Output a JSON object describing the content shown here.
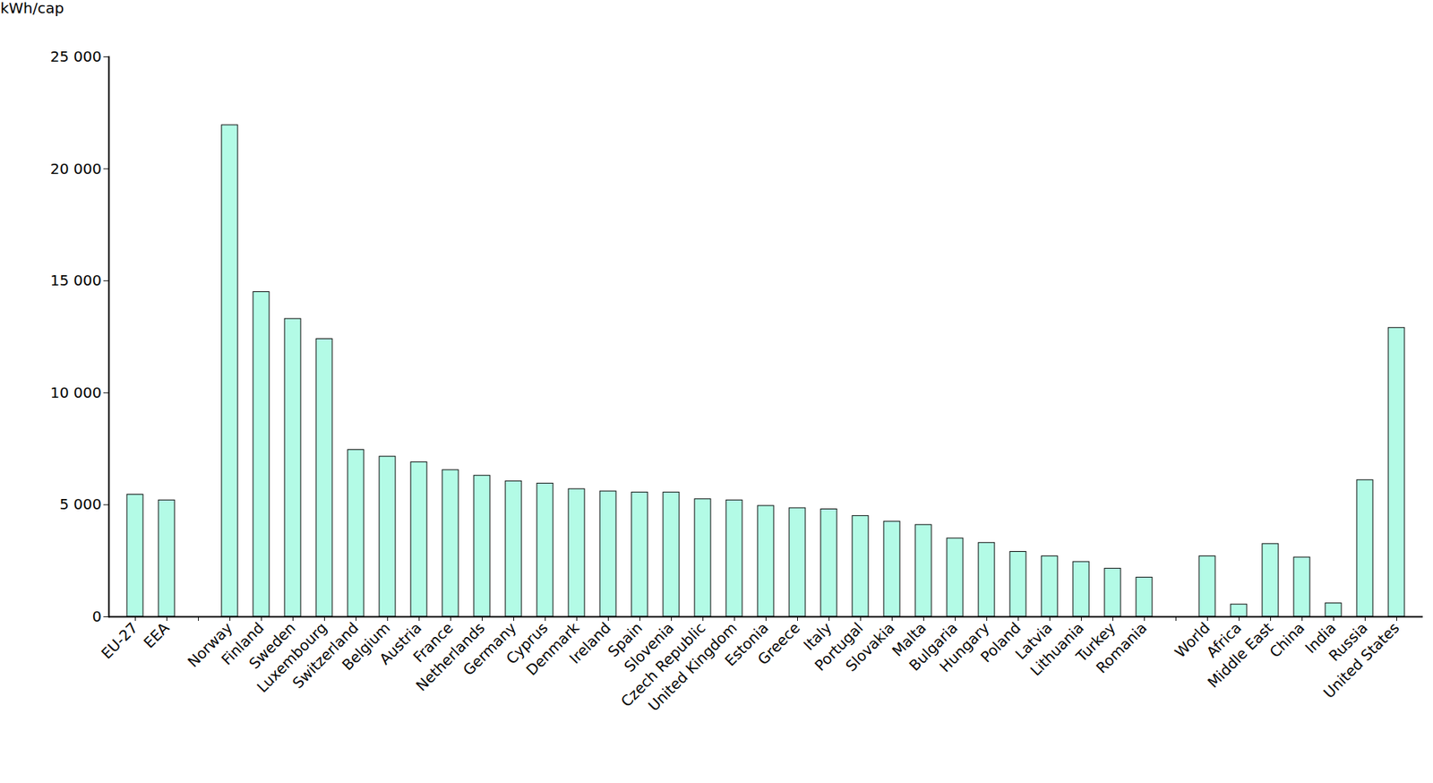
{
  "chart_data": {
    "type": "bar",
    "y_label": "kWh/cap",
    "categories": [
      "EU-27",
      "EEA",
      null,
      "Norway",
      "Finland",
      "Sweden",
      "Luxembourg",
      "Switzerland",
      "Belgium",
      "Austria",
      "France",
      "Netherlands",
      "Germany",
      "Cyprus",
      "Denmark",
      "Ireland",
      "Spain",
      "Slovenia",
      "Czech Republic",
      "United Kingdom",
      "Estonia",
      "Greece",
      "Italy",
      "Portugal",
      "Slovakia",
      "Malta",
      "Bulgaria",
      "Hungary",
      "Poland",
      "Latvia",
      "Lithuania",
      "Turkey",
      "Romania",
      null,
      "World",
      "Africa",
      "Middle East",
      "China",
      "India",
      "Russia",
      "United States"
    ],
    "values": [
      5450,
      5200,
      null,
      21950,
      14500,
      13300,
      12400,
      7450,
      7150,
      6900,
      6550,
      6300,
      6050,
      5950,
      5700,
      5600,
      5550,
      5550,
      5250,
      5200,
      4950,
      4850,
      4800,
      4500,
      4250,
      4100,
      3500,
      3300,
      2900,
      2700,
      2450,
      2150,
      1750,
      null,
      2700,
      550,
      3250,
      2650,
      600,
      6100,
      12900
    ],
    "color": "#b3fbe6",
    "ylim": [
      0,
      25000
    ],
    "yticks": [
      0,
      {
        "value": 5000,
        "label": "5 000"
      },
      {
        "value": 10000,
        "label": "10 000"
      },
      {
        "value": 15000,
        "label": "15 000"
      },
      {
        "value": 20000,
        "label": "20 000"
      },
      {
        "value": 25000,
        "label": "25 000"
      }
    ],
    "grid": false
  }
}
